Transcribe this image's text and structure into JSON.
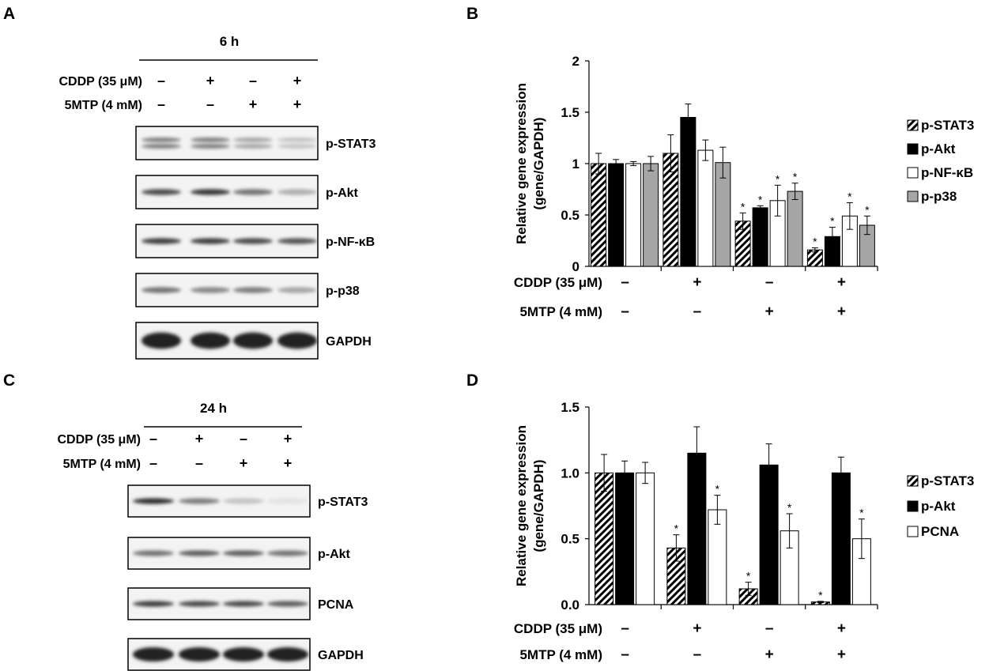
{
  "panels": {
    "A": {
      "letter": "A",
      "time": "6 h",
      "treatments": [
        {
          "label": "CDDP (35 μM)",
          "signs": [
            "–",
            "+",
            "–",
            "+"
          ]
        },
        {
          "label": "5MTP (4 mM)",
          "signs": [
            "–",
            "–",
            "+",
            "+"
          ]
        }
      ],
      "blots": [
        {
          "label": "p-STAT3",
          "lanes": [
            0.55,
            0.55,
            0.35,
            0.2
          ],
          "double": true
        },
        {
          "label": "p-Akt",
          "lanes": [
            0.8,
            0.9,
            0.6,
            0.3
          ]
        },
        {
          "label": "p-NF-κB",
          "lanes": [
            0.85,
            0.85,
            0.8,
            0.75
          ]
        },
        {
          "label": "p-p38",
          "lanes": [
            0.6,
            0.5,
            0.55,
            0.35
          ]
        },
        {
          "label": "GAPDH",
          "lanes": [
            1,
            1,
            1,
            1
          ],
          "thick": true
        }
      ]
    },
    "C": {
      "letter": "C",
      "time": "24 h",
      "treatments": [
        {
          "label": "CDDP (35 μM)",
          "signs": [
            "–",
            "+",
            "–",
            "+"
          ]
        },
        {
          "label": "5MTP (4 mM)",
          "signs": [
            "–",
            "–",
            "+",
            "+"
          ]
        }
      ],
      "blots": [
        {
          "label": "p-STAT3",
          "lanes": [
            0.95,
            0.55,
            0.2,
            0.05
          ]
        },
        {
          "label": "p-Akt",
          "lanes": [
            0.6,
            0.7,
            0.7,
            0.6
          ]
        },
        {
          "label": "PCNA",
          "lanes": [
            0.85,
            0.8,
            0.8,
            0.7
          ]
        },
        {
          "label": "GAPDH",
          "lanes": [
            1,
            1,
            1,
            1
          ],
          "thick": true
        }
      ]
    }
  },
  "chart_data": [
    {
      "panel": "B",
      "type": "bar",
      "ylabel_lines": [
        "Relative gene expression",
        "(gene/GAPDH)"
      ],
      "ylim": [
        0,
        2
      ],
      "yticks": [
        "0",
        "0.5",
        "1",
        "1.5",
        "2"
      ],
      "ytick_values": [
        0,
        0.5,
        1,
        1.5,
        2
      ],
      "grid": false,
      "legend_position": "right",
      "categories": [
        "– / –",
        "+ / –",
        "– / +",
        "+ / +"
      ],
      "treatment_rows": [
        {
          "label": "CDDP (35 μM)",
          "signs": [
            "–",
            "+",
            "–",
            "+"
          ]
        },
        {
          "label": "5MTP (4 mM)",
          "signs": [
            "–",
            "–",
            "+",
            "+"
          ]
        }
      ],
      "series": [
        {
          "name": "p-STAT3",
          "style": "hatch",
          "values": [
            1.0,
            1.1,
            0.44,
            0.16
          ],
          "errors": [
            0.1,
            0.18,
            0.08,
            0.02
          ],
          "sig": [
            false,
            false,
            true,
            true
          ]
        },
        {
          "name": "p-Akt",
          "style": "black",
          "values": [
            1.0,
            1.45,
            0.57,
            0.29
          ],
          "errors": [
            0.04,
            0.13,
            0.02,
            0.09
          ],
          "sig": [
            false,
            false,
            true,
            true
          ]
        },
        {
          "name": "p-NF-κB",
          "style": "white",
          "values": [
            1.0,
            1.13,
            0.64,
            0.49
          ],
          "errors": [
            0.02,
            0.1,
            0.15,
            0.13
          ],
          "sig": [
            false,
            false,
            true,
            true
          ]
        },
        {
          "name": "p-p38",
          "style": "gray",
          "values": [
            1.0,
            1.01,
            0.73,
            0.4
          ],
          "errors": [
            0.07,
            0.15,
            0.08,
            0.09
          ],
          "sig": [
            false,
            false,
            true,
            true
          ]
        }
      ],
      "sig_marker": "*"
    },
    {
      "panel": "D",
      "type": "bar",
      "ylabel_lines": [
        "Relative gene expression",
        "(gene/GAPDH)"
      ],
      "ylim": [
        0,
        1.5
      ],
      "yticks": [
        "0.0",
        "0.5",
        "1.0",
        "1.5"
      ],
      "ytick_values": [
        0,
        0.5,
        1.0,
        1.5
      ],
      "grid": false,
      "legend_position": "right",
      "categories": [
        "– / –",
        "+ / –",
        "– / +",
        "+ / +"
      ],
      "treatment_rows": [
        {
          "label": "CDDP (35 μM)",
          "signs": [
            "–",
            "+",
            "–",
            "+"
          ]
        },
        {
          "label": "5MTP (4 mM)",
          "signs": [
            "–",
            "–",
            "+",
            "+"
          ]
        }
      ],
      "series": [
        {
          "name": "p-STAT3",
          "style": "hatch",
          "values": [
            1.0,
            0.43,
            0.12,
            0.02
          ],
          "errors": [
            0.14,
            0.1,
            0.05,
            0.005
          ],
          "sig": [
            false,
            true,
            true,
            true
          ]
        },
        {
          "name": "p-Akt",
          "style": "black",
          "values": [
            1.0,
            1.15,
            1.06,
            1.0
          ],
          "errors": [
            0.09,
            0.2,
            0.16,
            0.12
          ],
          "sig": [
            false,
            false,
            false,
            false
          ]
        },
        {
          "name": "PCNA",
          "style": "white",
          "values": [
            1.0,
            0.72,
            0.56,
            0.5
          ],
          "errors": [
            0.08,
            0.11,
            0.13,
            0.15
          ],
          "sig": [
            false,
            true,
            true,
            true
          ]
        }
      ],
      "sig_marker": "*"
    }
  ]
}
